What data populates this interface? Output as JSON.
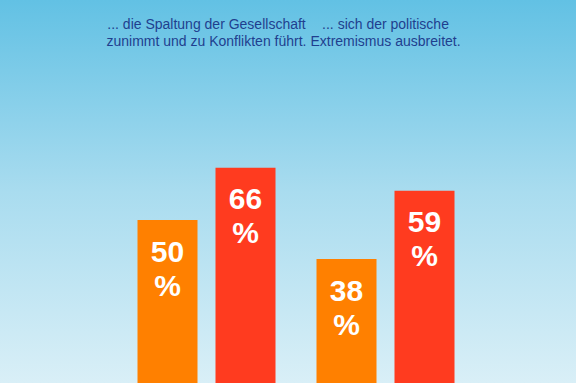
{
  "chart_data": {
    "type": "bar",
    "categories": [
      "... die Spaltung der Gesellschaft\nzunimmt und zu Konflikten führt.",
      "... sich der politische\nExtremismus ausbreitet."
    ],
    "series": [
      {
        "color": "#ff8000",
        "values": [
          50,
          38
        ],
        "value_labels": [
          "50 %",
          "38 %"
        ]
      },
      {
        "color": "#ff3b1f",
        "values": [
          66,
          59
        ],
        "value_labels": [
          "66 %",
          "59 %"
        ]
      }
    ],
    "ylim": [
      0,
      100
    ],
    "grid": false,
    "data_labels": true,
    "tick_labels": "x"
  }
}
